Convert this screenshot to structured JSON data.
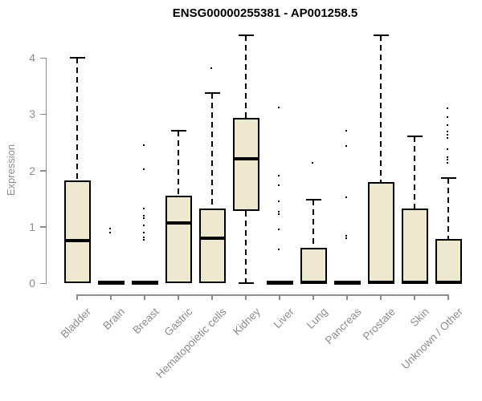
{
  "chart": {
    "title": "ENSG00000255381 - AP001258.5",
    "ylabel": "Expression"
  },
  "colors": {
    "box_fill": "#ede8d0",
    "box_border": "#000000",
    "axis_gray": "#8c8c8c",
    "title_color": "#000000"
  },
  "chart_data": {
    "type": "boxplot",
    "title": "ENSG00000255381 - AP001258.5",
    "xlabel": "",
    "ylabel": "Expression",
    "ylim": [
      0,
      4.45
    ],
    "yticks": [
      0,
      1,
      2,
      3,
      4
    ],
    "grid": false,
    "legend": false,
    "categories": [
      "Bladder",
      "Brain",
      "Breast",
      "Gastric",
      "Hematopoietic cells",
      "Kidney",
      "Liver",
      "Lung",
      "Pancreas",
      "Prostate",
      "Skin",
      "Unknown / Other"
    ],
    "boxes": [
      {
        "label": "Bladder",
        "min": 0,
        "q1": 0,
        "median": 0.75,
        "q3": 1.82,
        "max": 4.0,
        "outliers": []
      },
      {
        "label": "Brain",
        "min": 0,
        "q1": 0,
        "median": 0.02,
        "q3": 0.03,
        "max": 0.03,
        "outliers": [
          0.95,
          0.88
        ]
      },
      {
        "label": "Breast",
        "min": 0,
        "q1": 0,
        "median": 0.02,
        "q3": 0.03,
        "max": 0.03,
        "outliers": [
          2.42,
          2.0,
          1.3,
          1.17,
          1.13,
          1.0,
          0.87,
          0.79,
          0.75
        ]
      },
      {
        "label": "Gastric",
        "min": 0,
        "q1": 0,
        "median": 1.07,
        "q3": 1.55,
        "max": 2.7,
        "outliers": []
      },
      {
        "label": "Hematopoietic cells",
        "min": 0,
        "q1": 0,
        "median": 0.8,
        "q3": 1.33,
        "max": 3.37,
        "outliers": [
          3.79
        ]
      },
      {
        "label": "Kidney",
        "min": 0,
        "q1": 1.28,
        "median": 2.2,
        "q3": 2.93,
        "max": 4.4,
        "outliers": []
      },
      {
        "label": "Liver",
        "min": 0,
        "q1": 0,
        "median": 0.02,
        "q3": 0.03,
        "max": 0.03,
        "outliers": [
          3.1,
          1.88,
          1.72,
          1.43,
          1.25,
          1.2,
          0.93,
          0.58
        ]
      },
      {
        "label": "Lung",
        "min": 0,
        "q1": 0,
        "median": 0.02,
        "q3": 0.63,
        "max": 1.48,
        "outliers": [
          2.11
        ]
      },
      {
        "label": "Pancreas",
        "min": 0,
        "q1": 0,
        "median": 0.02,
        "q3": 0.03,
        "max": 0.03,
        "outliers": [
          2.69,
          2.41,
          1.5,
          0.82,
          0.78
        ]
      },
      {
        "label": "Prostate",
        "min": 0,
        "q1": 0,
        "median": 0.02,
        "q3": 1.8,
        "max": 4.4,
        "outliers": []
      },
      {
        "label": "Skin",
        "min": 0,
        "q1": 0,
        "median": 0.02,
        "q3": 1.33,
        "max": 2.6,
        "outliers": []
      },
      {
        "label": "Unknown / Other",
        "min": 0,
        "q1": 0,
        "median": 0.02,
        "q3": 0.78,
        "max": 1.86,
        "outliers": [
          3.08,
          2.92,
          2.78,
          2.67,
          2.61,
          2.56,
          2.36,
          2.22,
          2.17,
          2.11
        ]
      }
    ]
  }
}
